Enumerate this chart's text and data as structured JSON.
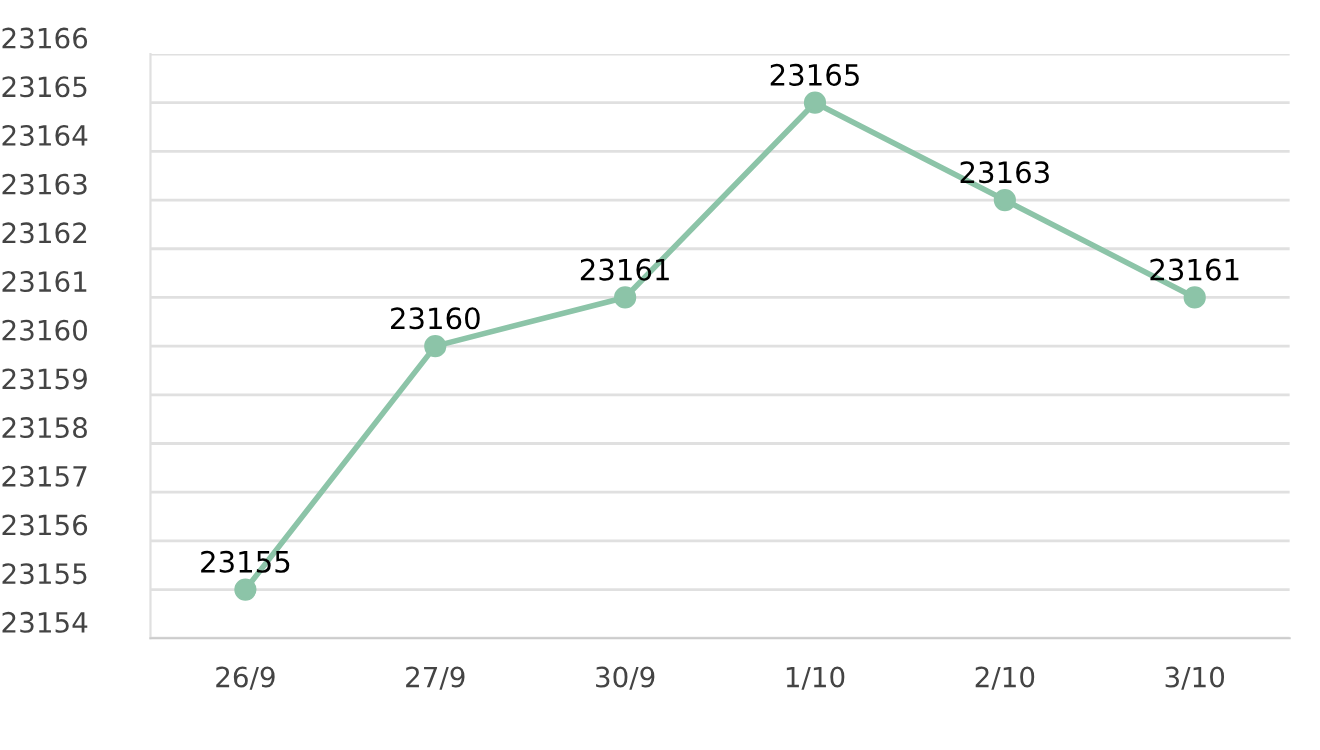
{
  "chart_data": {
    "type": "line",
    "categories": [
      "26/9",
      "27/9",
      "30/9",
      "1/10",
      "2/10",
      "3/10"
    ],
    "series": [
      {
        "color": "#8cc4a8",
        "values": [
          23155,
          23160,
          23161,
          23165,
          23163,
          23161
        ]
      }
    ],
    "ylim": [
      23154,
      23166
    ],
    "yticks": [
      23154,
      23155,
      23156,
      23157,
      23158,
      23159,
      23160,
      23161,
      23162,
      23163,
      23164,
      23165,
      23166
    ],
    "grid": "y",
    "marker": "circle",
    "line_style": "solid",
    "data_labels": true,
    "legend": false
  }
}
